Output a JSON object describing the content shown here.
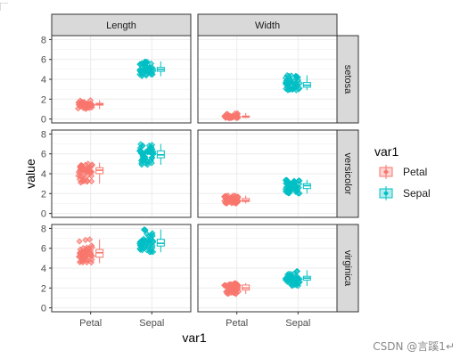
{
  "chart_data": {
    "type": "scatter",
    "subtype": "faceted jitter + boxplot",
    "title": "",
    "xlabel": "var1",
    "ylabel": "value",
    "ylim": [
      0,
      8
    ],
    "yticks": [
      "0",
      "2",
      "4",
      "6",
      "8"
    ],
    "categories": [
      "Petal",
      "Sepal"
    ],
    "grid": true,
    "legend": {
      "title": "var1",
      "placement": "right",
      "entries": [
        {
          "label": "Petal",
          "color": "#F8766D"
        },
        {
          "label": "Sepal",
          "color": "#00BFC4"
        }
      ]
    },
    "col_strips": [
      "Length",
      "Width"
    ],
    "row_strips": [
      "setosa",
      "versicolor",
      "virginica"
    ],
    "panels": [
      {
        "row": "setosa",
        "col": "Length",
        "box": {
          "Petal": [
            1.0,
            1.4,
            1.5,
            1.575,
            1.9
          ],
          "Sepal": [
            4.3,
            4.8,
            5.0,
            5.2,
            5.8
          ]
        }
      },
      {
        "row": "setosa",
        "col": "Width",
        "box": {
          "Petal": [
            0.1,
            0.2,
            0.2,
            0.3,
            0.6
          ],
          "Sepal": [
            2.9,
            3.2,
            3.4,
            3.675,
            4.4
          ]
        }
      },
      {
        "row": "versicolor",
        "col": "Length",
        "box": {
          "Petal": [
            3.0,
            4.0,
            4.35,
            4.6,
            5.1
          ],
          "Sepal": [
            4.9,
            5.6,
            5.9,
            6.3,
            7.0
          ]
        }
      },
      {
        "row": "versicolor",
        "col": "Width",
        "box": {
          "Petal": [
            1.0,
            1.2,
            1.3,
            1.5,
            1.8
          ],
          "Sepal": [
            2.0,
            2.5,
            2.8,
            3.0,
            3.4
          ]
        }
      },
      {
        "row": "virginica",
        "col": "Length",
        "box": {
          "Petal": [
            4.5,
            5.1,
            5.55,
            5.875,
            6.9
          ],
          "Sepal": [
            5.6,
            6.225,
            6.5,
            6.9,
            7.9
          ]
        }
      },
      {
        "row": "virginica",
        "col": "Width",
        "box": {
          "Petal": [
            1.4,
            1.8,
            2.0,
            2.3,
            2.5
          ],
          "Sepal": [
            2.2,
            2.8,
            3.0,
            3.175,
            3.8
          ]
        }
      }
    ]
  },
  "watermark": "CSDN @言蹊1↵"
}
